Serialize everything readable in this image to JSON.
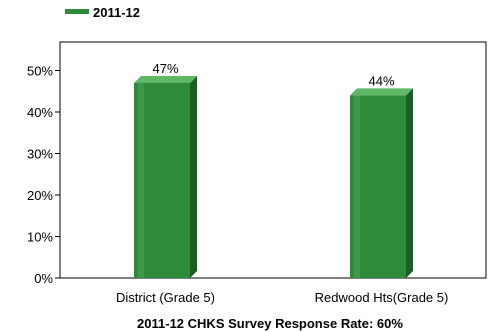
{
  "chart_data": {
    "type": "bar",
    "title": "",
    "xlabel": "",
    "ylabel": "",
    "categories": [
      "District (Grade 5)",
      "Redwood Hts(Grade 5)"
    ],
    "series": [
      {
        "name": "2011-12",
        "values": [
          47,
          44
        ],
        "labels": [
          "47%",
          "44%"
        ]
      }
    ],
    "ylim": [
      0,
      55
    ],
    "yticks": [
      0,
      10,
      20,
      30,
      40,
      50
    ],
    "ytick_labels": [
      "0%",
      "10%",
      "20%",
      "30%",
      "40%",
      "50%"
    ],
    "grid": false,
    "legend_position": "top-left",
    "footer": "2011-12 CHKS Survey Response Rate: 60%"
  },
  "colors": {
    "bar_front": "#2e8b3a",
    "bar_highlight": "#47a352",
    "bar_side": "#1a5e22",
    "bar_top": "#5fb868",
    "axis": "#000000",
    "legend_swatch": "#2e8b3a"
  }
}
